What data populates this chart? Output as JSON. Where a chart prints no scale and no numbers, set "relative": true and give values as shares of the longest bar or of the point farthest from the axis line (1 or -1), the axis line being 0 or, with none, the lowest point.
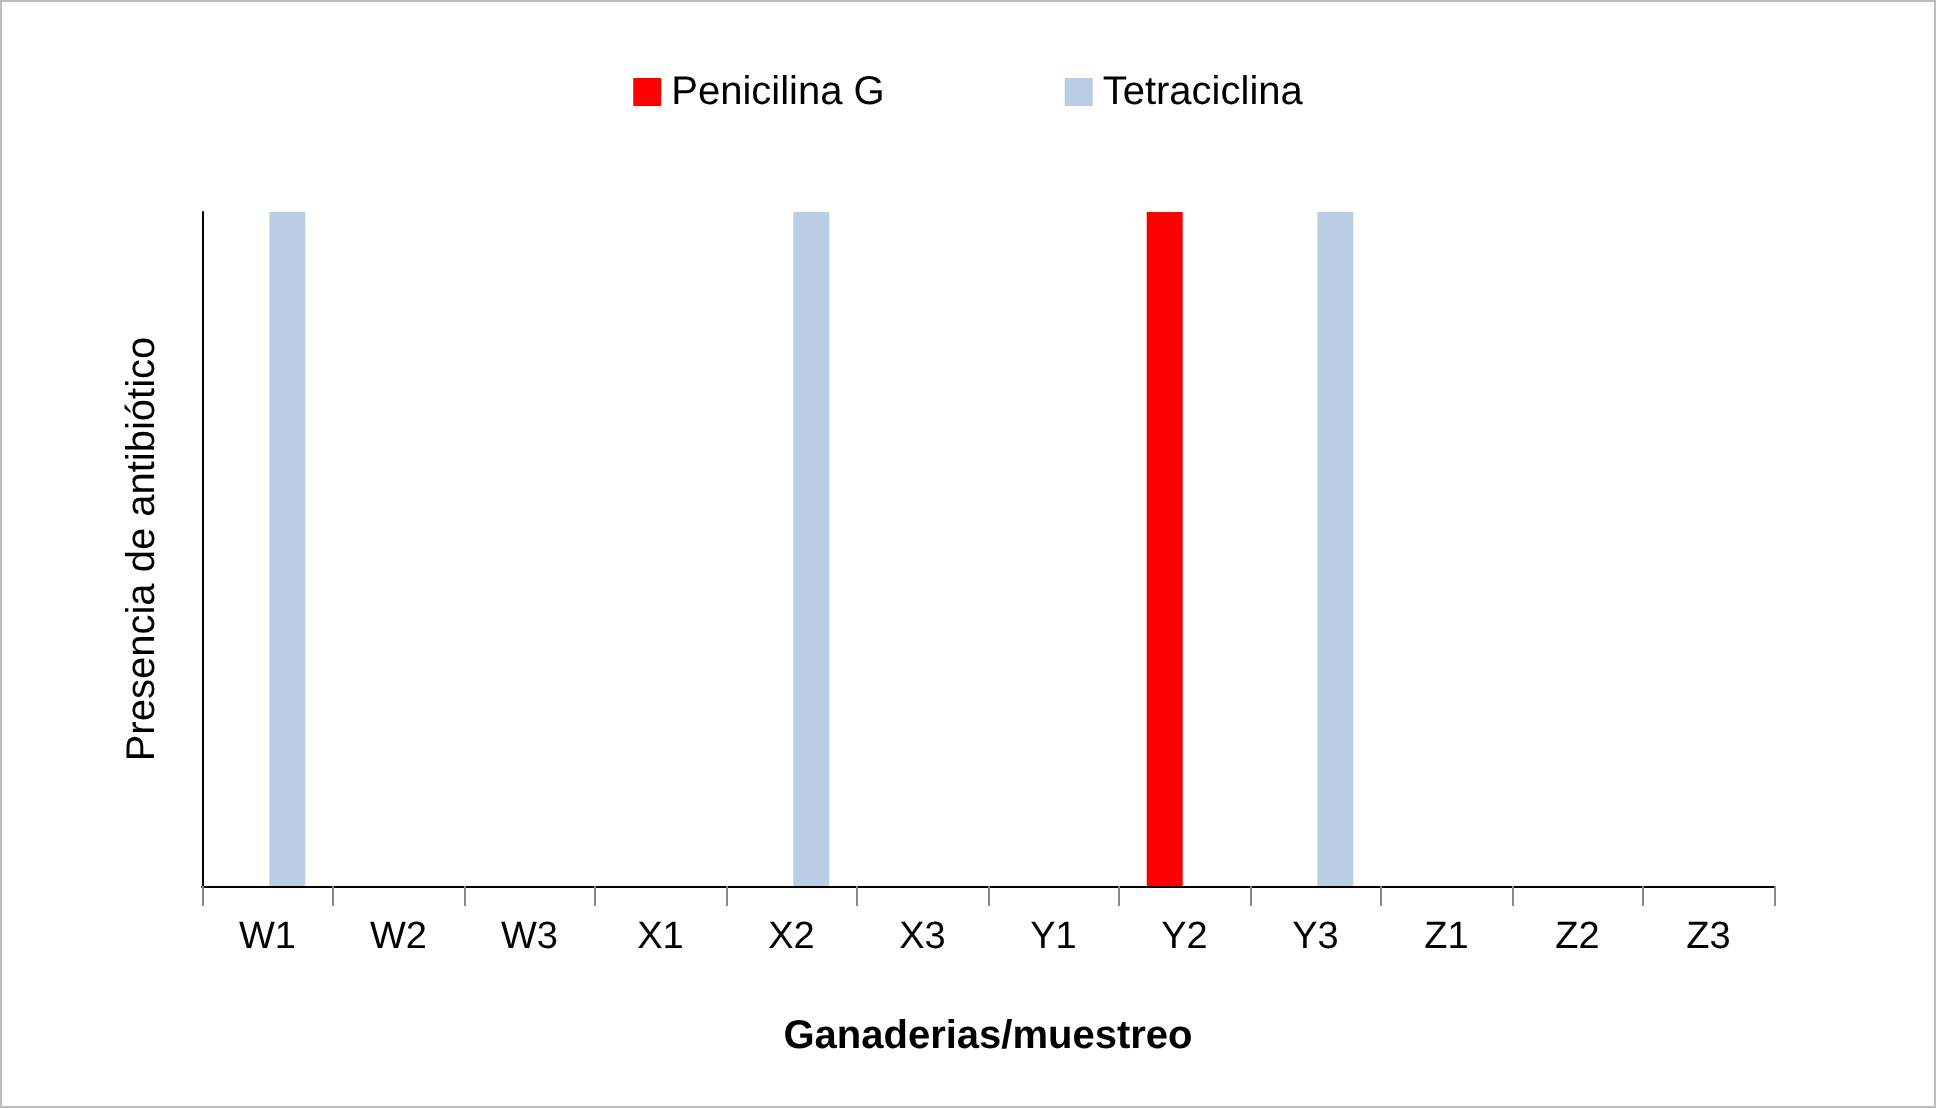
{
  "chart_data": {
    "type": "bar",
    "relative": true,
    "xlabel": "Ganaderias/muestreo",
    "ylabel": "Presencia de antibiótico",
    "categories": [
      "W1",
      "W2",
      "W3",
      "X1",
      "X2",
      "X3",
      "Y1",
      "Y2",
      "Y3",
      "Z1",
      "Z2",
      "Z3"
    ],
    "series": [
      {
        "name": "Penicilina G",
        "color": "#ff0000",
        "values": [
          0,
          0,
          0,
          0,
          0,
          0,
          0,
          1,
          0,
          0,
          0,
          0
        ]
      },
      {
        "name": "Tetraciclina",
        "color": "#b9cde5",
        "values": [
          1,
          0,
          0,
          0,
          1,
          0,
          0,
          0,
          1,
          0,
          0,
          0
        ]
      }
    ],
    "legend": "top",
    "grid": false
  }
}
